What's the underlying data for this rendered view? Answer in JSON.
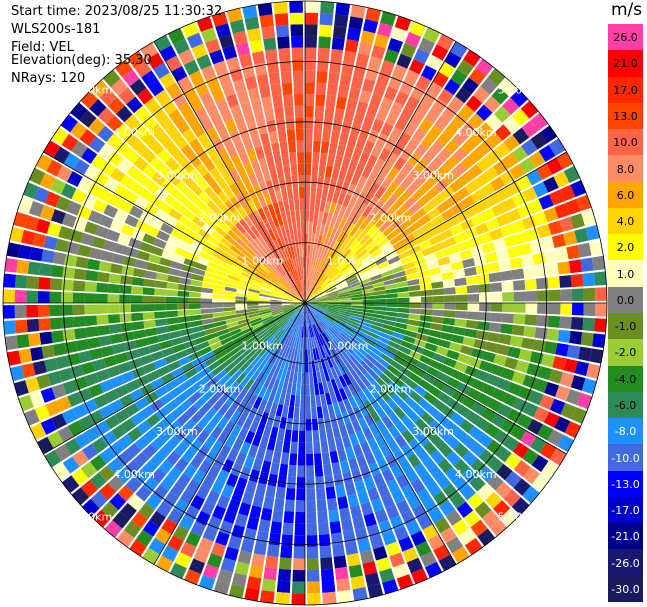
{
  "header": {
    "start_time": "Start time: 2023/08/25 11:30:32",
    "site": "WLS200s-181",
    "field": "Field: VEL",
    "elevation": "Elevation(deg): 35.30",
    "nrays": "NRays: 120"
  },
  "colorbar": {
    "unit": "m/s",
    "labels": [
      "26.0",
      "21.0",
      "17.0",
      "13.0",
      "10.0",
      "8.0",
      "6.0",
      "4.0",
      "2.0",
      "1.0",
      "0.0",
      "-1.0",
      "-2.0",
      "-4.0",
      "-6.0",
      "-8.0",
      "-10.0",
      "-13.0",
      "-17.0",
      "-21.0",
      "-26.0",
      "-30.0"
    ],
    "colors": [
      "#ff3fa6",
      "#ff0000",
      "#ff2600",
      "#ff4500",
      "#ff6347",
      "#ff8c66",
      "#ffa500",
      "#ffd400",
      "#ffff00",
      "#ffffbe",
      "#808080",
      "#6b8e23",
      "#9acd32",
      "#228b22",
      "#2e8b57",
      "#1e90ff",
      "#4169e1",
      "#0000ff",
      "#0000cd",
      "#00008b",
      "#191970",
      "#1a1a5e"
    ]
  },
  "chart_data": {
    "type": "heatmap",
    "projection": "polar-ppi",
    "field": "VEL",
    "elevation_deg": 35.3,
    "n_rays": 120,
    "range_km": [
      0,
      5
    ],
    "range_ring_labels": [
      "1.00km",
      "2.00km",
      "3.00km",
      "4.00km",
      "5.00km"
    ],
    "spoke_angles_deg": [
      0,
      30,
      60,
      90,
      120,
      150,
      180,
      210,
      240,
      270,
      300,
      330
    ],
    "dominant_velocity_by_sector": [
      {
        "sector": "north",
        "velocity_ms": 13.0
      },
      {
        "sector": "north-east",
        "velocity_ms": 8.0
      },
      {
        "sector": "east",
        "velocity_ms": 0.0
      },
      {
        "sector": "south-east",
        "velocity_ms": -6.0
      },
      {
        "sector": "south",
        "velocity_ms": -10.0
      },
      {
        "sector": "south-west",
        "velocity_ms": -8.0
      },
      {
        "sector": "west",
        "velocity_ms": -2.0
      },
      {
        "sector": "north-west",
        "velocity_ms": 4.0
      }
    ],
    "vmin": -30.0,
    "vmax": 26.0
  }
}
